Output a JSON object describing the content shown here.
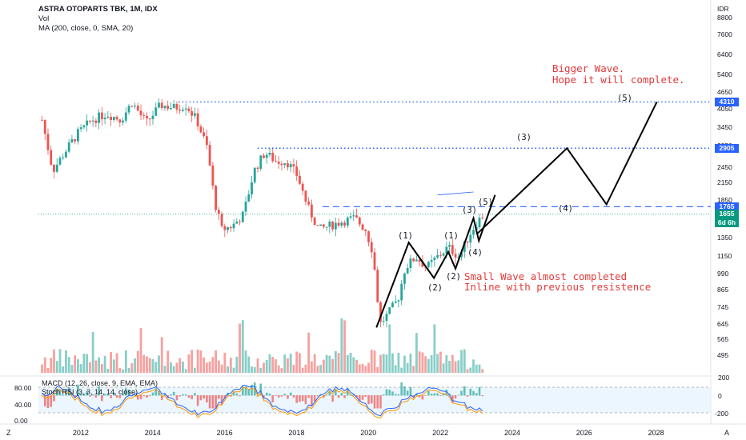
{
  "header": {
    "symbol_line": "ASTRA OTOPARTS TBK, 1M, IDX",
    "vol_label": "Vol",
    "ma_label": "MA (200, close, 0, SMA, 20)"
  },
  "currency": "IDR",
  "price_axis": {
    "ticks": [
      "8800",
      "7600",
      "6400",
      "5400",
      "4650",
      "4050",
      "3450",
      "2950",
      "2450",
      "2150",
      "1850",
      "1350",
      "1150",
      "990",
      "865",
      "745",
      "645",
      "565",
      "495"
    ],
    "tags": [
      {
        "label": "4310",
        "color": "#2962ff"
      },
      {
        "label": "2905",
        "color": "#2962ff"
      },
      {
        "label": "1765",
        "color": "#2962ff"
      },
      {
        "label": "1655",
        "color": "#089981"
      },
      {
        "label": "6d 6h",
        "color": "#089981"
      }
    ]
  },
  "time_axis": {
    "ticks": [
      "2012",
      "2014",
      "2016",
      "2018",
      "2020",
      "2022",
      "2024",
      "2026",
      "2028"
    ],
    "left_icon": "Z",
    "right_icon": "A"
  },
  "annotations": {
    "bigger_wave_line1": "Bigger Wave.",
    "bigger_wave_line2": "Hope it will complete.",
    "small_wave_line1": "Small Wave almost completed",
    "small_wave_line2": "Inline with previous resistence",
    "big_wave_labels": [
      "(3)",
      "(4)",
      "(5)"
    ],
    "small_wave_labels": [
      "(1)",
      "(2)",
      "(1)",
      "(2)",
      "(3)",
      "(4)",
      "(5)"
    ]
  },
  "indicators": {
    "macd_label": "MACD (12, 26, close, 9, EMA, EMA)",
    "stoch_label": "Stoch RSI (3, 3, 14, 14, close)",
    "stoch_ticks": [
      "80.00",
      "40.00",
      "0.00"
    ],
    "macd_ticks": [
      "200",
      "0",
      "-200"
    ]
  },
  "colors": {
    "up": "#26a69a",
    "down": "#ef5350",
    "level": "#2962ff",
    "ma": "#2962ff",
    "price_line": "#089981",
    "annotation": "#e23a3a"
  },
  "chart_data": {
    "type": "candlestick",
    "x_range": [
      2010.8,
      2029.5
    ],
    "y_scale": "log",
    "ylim": [
      440,
      9600
    ],
    "levels": [
      4310,
      2905,
      1765,
      1655
    ],
    "price_path": [
      [
        2010.9,
        3700
      ],
      [
        2011.2,
        2400
      ],
      [
        2011.6,
        2900
      ],
      [
        2011.9,
        3300
      ],
      [
        2012.3,
        3700
      ],
      [
        2012.7,
        3900
      ],
      [
        2013.1,
        3700
      ],
      [
        2013.4,
        4300
      ],
      [
        2013.8,
        3600
      ],
      [
        2014.2,
        4200
      ],
      [
        2014.6,
        4100
      ],
      [
        2014.9,
        4200
      ],
      [
        2015.2,
        3700
      ],
      [
        2015.5,
        2900
      ],
      [
        2015.7,
        1850
      ],
      [
        2015.9,
        1450
      ],
      [
        2016.2,
        1500
      ],
      [
        2016.5,
        1650
      ],
      [
        2016.8,
        2400
      ],
      [
        2017.1,
        2800
      ],
      [
        2017.4,
        2600
      ],
      [
        2017.7,
        2600
      ],
      [
        2018.0,
        2300
      ],
      [
        2018.3,
        1750
      ],
      [
        2018.6,
        1450
      ],
      [
        2018.9,
        1500
      ],
      [
        2019.2,
        1550
      ],
      [
        2019.6,
        1600
      ],
      [
        2019.9,
        1450
      ],
      [
        2020.1,
        1200
      ],
      [
        2020.3,
        650
      ],
      [
        2020.5,
        700
      ],
      [
        2020.8,
        800
      ],
      [
        2021.0,
        1050
      ],
      [
        2021.3,
        1150
      ],
      [
        2021.6,
        1050
      ],
      [
        2021.9,
        1150
      ],
      [
        2022.2,
        1250
      ],
      [
        2022.5,
        1150
      ],
      [
        2022.8,
        1400
      ],
      [
        2023.0,
        1550
      ],
      [
        2023.2,
        1655
      ]
    ],
    "elliott_big": [
      [
        2023.0,
        1400
      ],
      [
        2025.5,
        2905
      ],
      [
        2026.6,
        1800
      ],
      [
        2028.0,
        4310
      ]
    ],
    "elliott_small": [
      [
        2020.2,
        630
      ],
      [
        2021.1,
        1300
      ],
      [
        2021.8,
        960
      ],
      [
        2022.2,
        1200
      ],
      [
        2022.4,
        1040
      ],
      [
        2022.9,
        1600
      ],
      [
        2023.05,
        1320
      ],
      [
        2023.5,
        1950
      ]
    ]
  }
}
